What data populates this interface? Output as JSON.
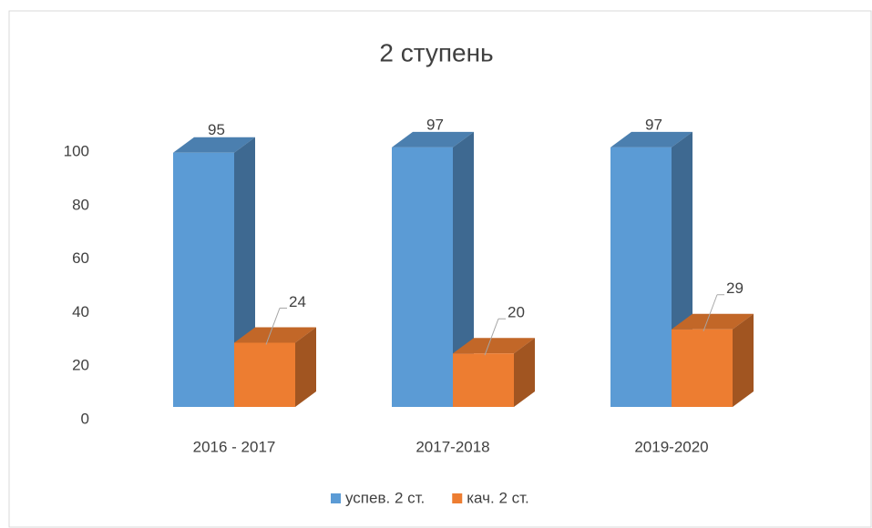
{
  "chart_data": {
    "type": "bar3d",
    "title": "2 ступень",
    "categories": [
      "2016 - 2017",
      "2017-2018",
      "2019-2020"
    ],
    "series": [
      {
        "name": "успев. 2 ст.",
        "color": "#5b9bd5",
        "values": [
          95,
          97,
          97
        ]
      },
      {
        "name": "кач. 2 ст.",
        "color": "#ed7d31",
        "values": [
          24,
          20,
          29
        ]
      }
    ],
    "ylim": [
      0,
      100
    ],
    "yticks": [
      0,
      20,
      40,
      60,
      80,
      100
    ],
    "legend": "bottom"
  }
}
